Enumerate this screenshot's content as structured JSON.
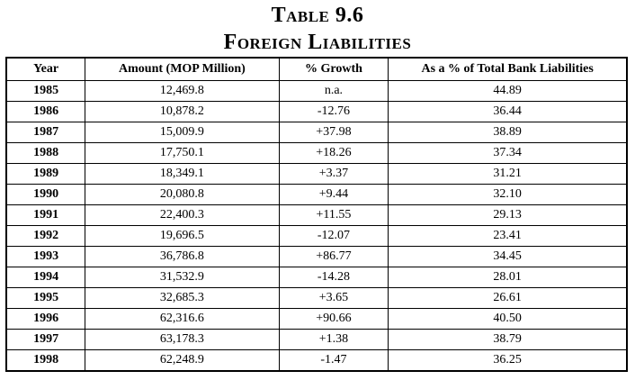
{
  "title": "Table 9.6",
  "subtitle": "Foreign Liabilities",
  "headers": {
    "year": "Year",
    "amount": "Amount (MOP Million)",
    "growth": "% Growth",
    "pct": "As a % of Total Bank Liabilities"
  },
  "rows": [
    {
      "year": "1985",
      "amount": "12,469.8",
      "growth": "n.a.",
      "pct": "44.89"
    },
    {
      "year": "1986",
      "amount": "10,878.2",
      "growth": "-12.76",
      "pct": "36.44"
    },
    {
      "year": "1987",
      "amount": "15,009.9",
      "growth": "+37.98",
      "pct": "38.89"
    },
    {
      "year": "1988",
      "amount": "17,750.1",
      "growth": "+18.26",
      "pct": "37.34"
    },
    {
      "year": "1989",
      "amount": "18,349.1",
      "growth": "+3.37",
      "pct": "31.21"
    },
    {
      "year": "1990",
      "amount": "20,080.8",
      "growth": "+9.44",
      "pct": "32.10"
    },
    {
      "year": "1991",
      "amount": "22,400.3",
      "growth": "+11.55",
      "pct": "29.13"
    },
    {
      "year": "1992",
      "amount": "19,696.5",
      "growth": "-12.07",
      "pct": "23.41"
    },
    {
      "year": "1993",
      "amount": "36,786.8",
      "growth": "+86.77",
      "pct": "34.45"
    },
    {
      "year": "1994",
      "amount": "31,532.9",
      "growth": "-14.28",
      "pct": "28.01"
    },
    {
      "year": "1995",
      "amount": "32,685.3",
      "growth": "+3.65",
      "pct": "26.61"
    },
    {
      "year": "1996",
      "amount": "62,316.6",
      "growth": "+90.66",
      "pct": "40.50"
    },
    {
      "year": "1997",
      "amount": "63,178.3",
      "growth": "+1.38",
      "pct": "38.79"
    },
    {
      "year": "1998",
      "amount": "62,248.9",
      "growth": "-1.47",
      "pct": "36.25"
    }
  ]
}
